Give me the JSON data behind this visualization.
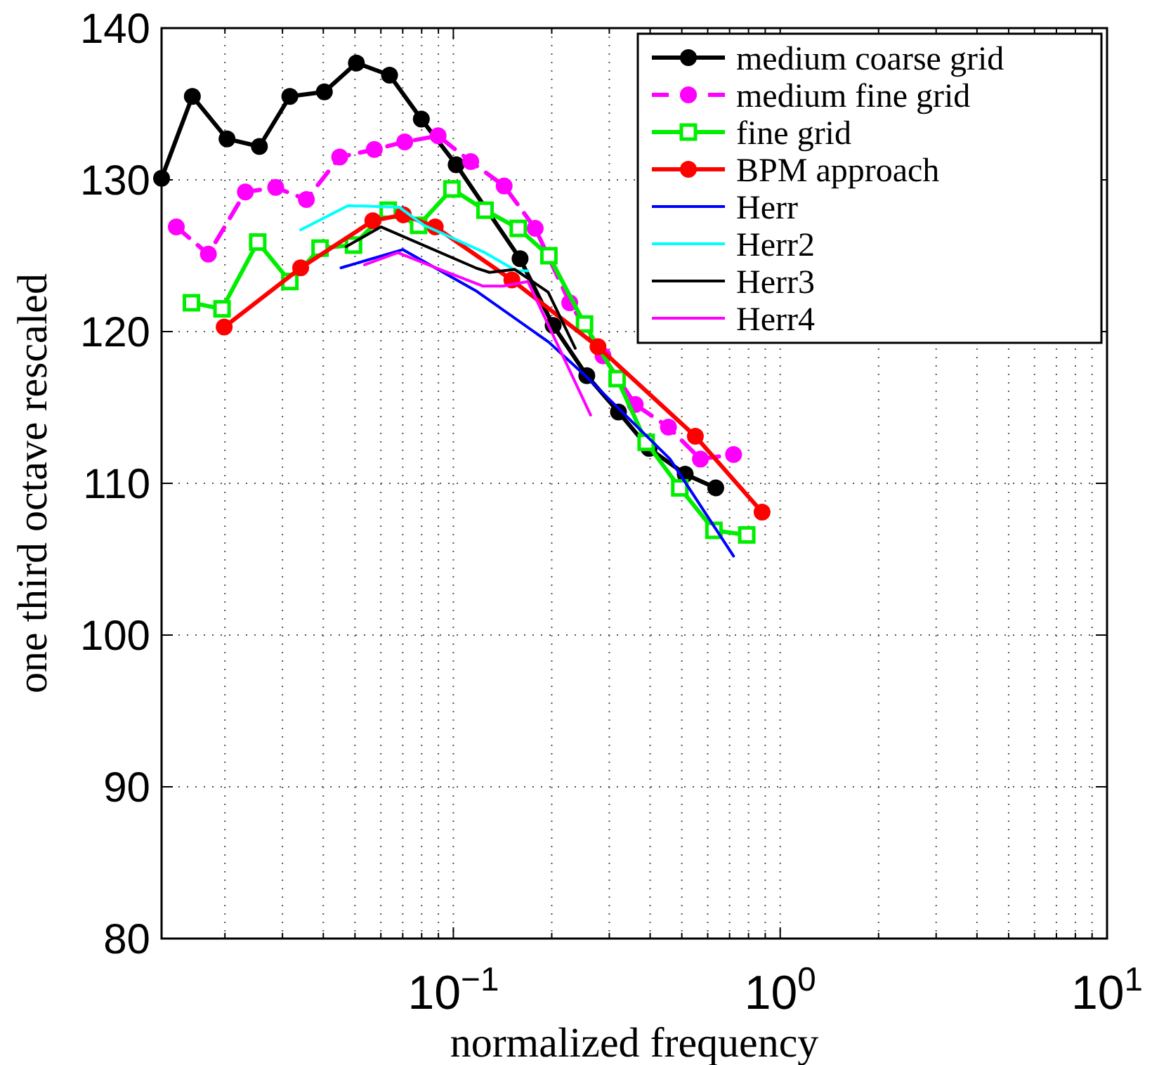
{
  "chart_data": {
    "type": "line",
    "xlabel": "normalized frequency",
    "ylabel": "one third octave rescaled",
    "log": "x",
    "grid": true,
    "legend": "top right",
    "xlim": [
      0.0128,
      10
    ],
    "ylim": [
      80,
      140
    ],
    "xticks": [
      {
        "value": 0.02,
        "label": null
      },
      {
        "value": 0.03,
        "label": null
      },
      {
        "value": 0.04,
        "label": null
      },
      {
        "value": 0.05,
        "label": null
      },
      {
        "value": 0.06,
        "label": null
      },
      {
        "value": 0.07,
        "label": null
      },
      {
        "value": 0.08,
        "label": null
      },
      {
        "value": 0.09,
        "label": null
      },
      {
        "value": 0.1,
        "label": "10$^{−1}$"
      },
      {
        "value": 0.2,
        "label": null
      },
      {
        "value": 0.3,
        "label": null
      },
      {
        "value": 0.4,
        "label": null
      },
      {
        "value": 0.5,
        "label": null
      },
      {
        "value": 0.6,
        "label": null
      },
      {
        "value": 0.7,
        "label": null
      },
      {
        "value": 0.8,
        "label": null
      },
      {
        "value": 0.9,
        "label": null
      },
      {
        "value": 1,
        "label": "10$^{0}$"
      },
      {
        "value": 2,
        "label": null
      },
      {
        "value": 3,
        "label": null
      },
      {
        "value": 4,
        "label": null
      },
      {
        "value": 5,
        "label": null
      },
      {
        "value": 6,
        "label": null
      },
      {
        "value": 7,
        "label": null
      },
      {
        "value": 8,
        "label": null
      },
      {
        "value": 9,
        "label": null
      },
      {
        "value": 10,
        "label": "10$^{1}$"
      }
    ],
    "yticks": [
      80,
      90,
      100,
      110,
      120,
      130,
      140
    ],
    "series": [
      {
        "name": "medium coarse grid",
        "color": "#000000",
        "marker": "circle",
        "line_style": "solid",
        "x": [
          0.0128,
          0.0159,
          0.0203,
          0.0255,
          0.0316,
          0.0403,
          0.0505,
          0.0638,
          0.0798,
          0.102,
          0.16,
          0.202,
          0.256,
          0.32,
          0.397,
          0.512,
          0.635
        ],
        "values": [
          130.1,
          135.5,
          132.7,
          132.2,
          135.5,
          135.8,
          137.7,
          136.9,
          134.0,
          131.0,
          124.8,
          120.4,
          117.1,
          114.7,
          112.3,
          110.6,
          109.7
        ]
      },
      {
        "name": "medium fine grid",
        "color": "#ff00ff",
        "marker": "circle",
        "line_style": "dashed",
        "x": [
          0.0142,
          0.0178,
          0.0231,
          0.0286,
          0.0355,
          0.0449,
          0.0573,
          0.071,
          0.0898,
          0.113,
          0.143,
          0.178,
          0.227,
          0.287,
          0.36,
          0.455,
          0.57,
          0.72
        ],
        "values": [
          126.9,
          125.1,
          129.2,
          129.5,
          128.7,
          131.5,
          132.0,
          132.5,
          132.9,
          131.2,
          129.6,
          126.8,
          121.9,
          118.4,
          115.2,
          113.7,
          111.6,
          111.9
        ]
      },
      {
        "name": "fine grid",
        "color": "#00ee00",
        "marker": "square",
        "line_style": "solid",
        "x": [
          0.0158,
          0.0196,
          0.0252,
          0.0316,
          0.0391,
          0.0495,
          0.0632,
          0.0783,
          0.099,
          0.125,
          0.158,
          0.196,
          0.252,
          0.317,
          0.389,
          0.493,
          0.627,
          0.79
        ],
        "values": [
          121.9,
          121.5,
          125.9,
          123.3,
          125.5,
          125.7,
          128.0,
          127.0,
          129.4,
          128.0,
          126.8,
          125.0,
          120.5,
          116.9,
          112.7,
          109.7,
          106.9,
          106.6
        ]
      },
      {
        "name": "BPM approach",
        "color": "#ff0000",
        "marker": "circle",
        "line_style": "solid",
        "x": [
          0.0199,
          0.0341,
          0.0567,
          0.0703,
          0.088,
          0.151,
          0.277,
          0.55,
          0.88
        ],
        "values": [
          120.3,
          124.2,
          127.3,
          127.7,
          126.9,
          123.4,
          119.0,
          113.1,
          108.1
        ]
      },
      {
        "name": "Herr",
        "color": "#0000ff",
        "marker": "none",
        "line_style": "solid",
        "x": [
          0.0453,
          0.07,
          0.117,
          0.196,
          0.256,
          0.46,
          0.72
        ],
        "values": [
          124.2,
          125.4,
          122.7,
          119.3,
          117.0,
          111.6,
          105.2
        ]
      },
      {
        "name": "Herr2",
        "color": "#00ffff",
        "marker": "none",
        "line_style": "solid",
        "x": [
          0.0341,
          0.0476,
          0.0683,
          0.0814,
          0.125,
          0.156,
          0.169
        ],
        "values": [
          126.7,
          128.3,
          128.2,
          127.0,
          125.2,
          124.0,
          124.0
        ]
      },
      {
        "name": "Herr3",
        "color": "#000000",
        "marker": "none",
        "line_style": "solid",
        "x": [
          0.047,
          0.06,
          0.117,
          0.129,
          0.154,
          0.195,
          0.236
        ],
        "values": [
          125.6,
          126.9,
          124.2,
          123.9,
          124.1,
          122.6,
          118.9
        ]
      },
      {
        "name": "Herr4",
        "color": "#ff00ff",
        "marker": "none",
        "line_style": "solid",
        "x": [
          0.0535,
          0.0676,
          0.0934,
          0.123,
          0.142,
          0.169,
          0.263
        ],
        "values": [
          124.4,
          125.2,
          124.0,
          123.0,
          123.0,
          123.3,
          114.5
        ]
      }
    ]
  }
}
